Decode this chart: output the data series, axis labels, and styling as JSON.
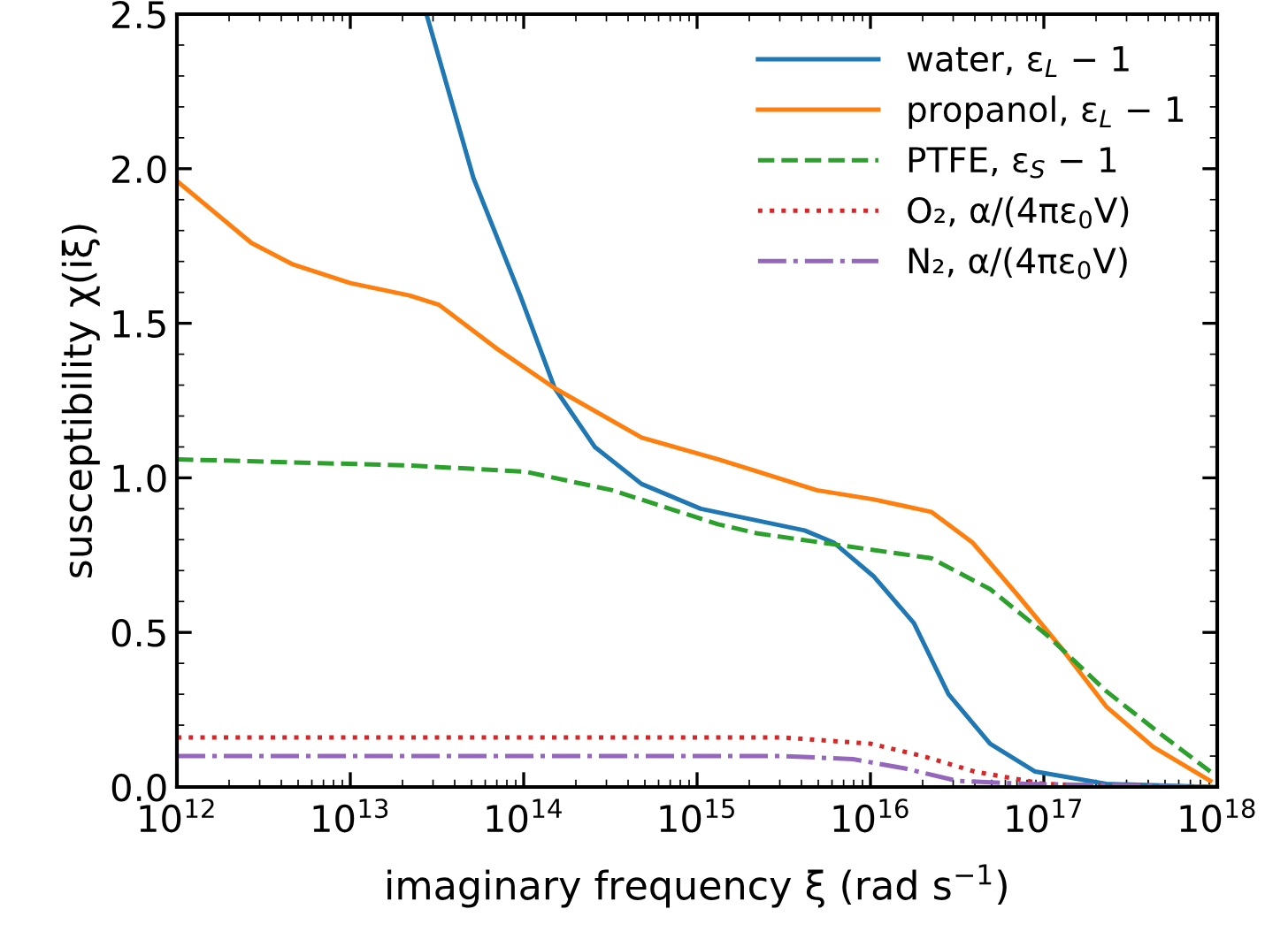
{
  "chart_data": {
    "type": "line",
    "xlabel": "imaginary frequency ξ (rad s$^{−1}$)",
    "ylabel": "susceptibility χ(iξ)",
    "log": "x",
    "xlim": [
      1000000000000.0,
      1e+18
    ],
    "ylim": [
      0,
      2.5
    ],
    "xticks": [
      {
        "value": 1000000000000.0,
        "label": "10$^{12}$"
      },
      {
        "value": 10000000000000.0,
        "label": "10$^{13}$"
      },
      {
        "value": 100000000000000.0,
        "label": "10$^{14}$"
      },
      {
        "value": 1000000000000000.0,
        "label": "10$^{15}$"
      },
      {
        "value": 1e+16,
        "label": "10$^{16}$"
      },
      {
        "value": 1e+17,
        "label": "10$^{17}$"
      },
      {
        "value": 1e+18,
        "label": "10$^{18}$"
      }
    ],
    "yticks": [
      {
        "value": 0,
        "label": "0.0"
      },
      {
        "value": 0.5,
        "label": "0.5"
      },
      {
        "value": 1,
        "label": "1.0"
      },
      {
        "value": 1.5,
        "label": "1.5"
      },
      {
        "value": 2,
        "label": "2.0"
      },
      {
        "value": 2.5,
        "label": "2.5"
      }
    ],
    "grid": false,
    "legend": "top right",
    "marker": "none",
    "series": [
      {
        "name": "water, ε$_{L}$ − 1",
        "color": "#1f77b4",
        "line_style": "solid",
        "x": [
          27500000000000.0,
          51300000000000.0,
          95500000000000.0,
          151000000000000.0,
          257000000000000.0,
          479000000000000.0,
          1050000000000000.0,
          4170000000000000.0,
          6170000000000000.0,
          1.05e+16,
          1.78e+16,
          2.82e+16,
          4.9e+16,
          8.91e+16,
          2.29e+17,
          9.12e+17
        ],
        "values": [
          2.5,
          1.97,
          1.59,
          1.29,
          1.1,
          0.98,
          0.9,
          0.83,
          0.79,
          0.68,
          0.53,
          0.3,
          0.14,
          0.05,
          0.01,
          0.0
        ]
      },
      {
        "name": "propanol, ε$_{L}$ − 1",
        "color": "#ff7f0e",
        "line_style": "solid",
        "x": [
          1000000000000.0,
          2690000000000.0,
          4680000000000.0,
          10000000000000.0,
          21900000000000.0,
          32400000000000.0,
          69200000000000.0,
          151000000000000.0,
          479000000000000.0,
          1320000000000000.0,
          2240000000000000.0,
          4900000000000000.0,
          1.05e+16,
          2.24e+16,
          3.89e+16,
          7.08e+16,
          1.26e+17,
          2.29e+17,
          4.27e+17,
          9.12e+17
        ],
        "values": [
          1.96,
          1.76,
          1.69,
          1.63,
          1.59,
          1.56,
          1.42,
          1.29,
          1.13,
          1.06,
          1.02,
          0.96,
          0.93,
          0.89,
          0.79,
          0.62,
          0.45,
          0.26,
          0.13,
          0.02
        ]
      },
      {
        "name": "PTFE, ε$_{S}$ − 1",
        "color": "#2ca02c",
        "line_style": "dashed",
        "x": [
          1000000000000.0,
          21900000000000.0,
          102000000000000.0,
          324000000000000.0,
          1320000000000000.0,
          2240000000000000.0,
          7080000000000000.0,
          2.24e+16,
          4.9e+16,
          1.05e+17,
          2.29e+17,
          5.01e+17,
          9.12e+17
        ],
        "values": [
          1.06,
          1.04,
          1.02,
          0.96,
          0.85,
          0.82,
          0.78,
          0.74,
          0.64,
          0.49,
          0.31,
          0.16,
          0.05
        ]
      },
      {
        "name": "O₂, α/(4πε$_{0}$V)",
        "color": "#d62728",
        "line_style": "dotted",
        "x": [
          1000000000000.0,
          3160000000000000.0,
          1e+16,
          2e+16,
          3.98e+16,
          1e+17,
          3.16e+17,
          1e+18
        ],
        "values": [
          0.16,
          0.16,
          0.14,
          0.1,
          0.05,
          0.01,
          0,
          0
        ]
      },
      {
        "name": "N₂, α/(4πε$_{0}$V)",
        "color": "#9467bd",
        "line_style": "dashdot",
        "x": [
          1000000000000.0,
          3160000000000000.0,
          7940000000000000.0,
          1.58e+16,
          3.16e+16,
          7.94e+16,
          1e+18
        ],
        "values": [
          0.1,
          0.1,
          0.09,
          0.06,
          0.02,
          0.01,
          0
        ]
      }
    ]
  }
}
